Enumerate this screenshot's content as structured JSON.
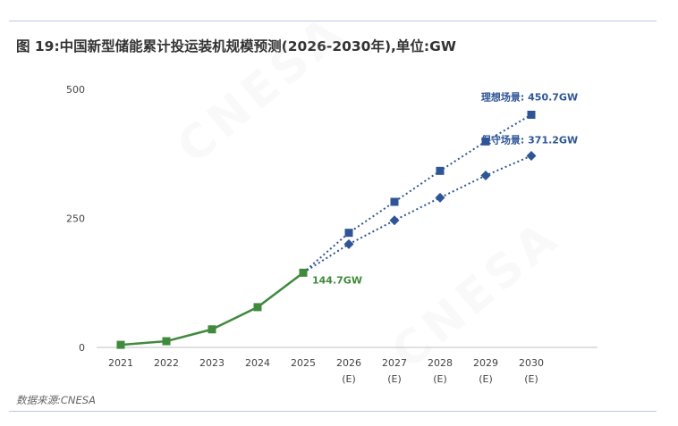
{
  "figure": {
    "title": "图 19:中国新型储能累计投运装机规模预测(2026-2030年),单位:GW",
    "source": "数据来源:CNESA",
    "watermark": "CNESA"
  },
  "colors": {
    "actual": "#3f8a3c",
    "forecast": "#2f5597",
    "rule": "#b9c8e6",
    "axis": "#bfbfbf"
  },
  "chart_data": {
    "type": "line",
    "title": "图 19:中国新型储能累计投运装机规模预测(2026-2030年),单位:GW",
    "xlabel": "",
    "ylabel": "",
    "ylim": [
      0,
      500
    ],
    "yticks": [
      "0",
      "250",
      "500"
    ],
    "categories": [
      "2021",
      "2022",
      "2023",
      "2024",
      "2025",
      "2026",
      "2027",
      "2028",
      "2029",
      "2030"
    ],
    "category_sublabels": [
      "",
      "",
      "",
      "",
      "",
      "(E)",
      "(E)",
      "(E)",
      "(E)",
      "(E)"
    ],
    "grid": false,
    "series": [
      {
        "name": "",
        "style": "solid",
        "marker": "square",
        "color": "#3f8a3c",
        "x": [
          "2021",
          "2022",
          "2023",
          "2024",
          "2025"
        ],
        "values": [
          5,
          12,
          35,
          78,
          144.7
        ]
      },
      {
        "name": "理想场景",
        "style": "dotted",
        "marker": "square",
        "color": "#2f5597",
        "x": [
          "2025",
          "2026",
          "2027",
          "2028",
          "2029",
          "2030"
        ],
        "values": [
          144.7,
          222,
          282,
          342,
          399,
          450.7
        ]
      },
      {
        "name": "保守场景",
        "style": "dotted",
        "marker": "diamond",
        "color": "#2f5597",
        "x": [
          "2025",
          "2026",
          "2027",
          "2028",
          "2029",
          "2030"
        ],
        "values": [
          144.7,
          200,
          246,
          290,
          333,
          371.2
        ]
      }
    ],
    "annotations": [
      {
        "text": "144.7GW",
        "series": 0,
        "x": "2025",
        "color": "#3f8a3c"
      },
      {
        "text": "理想场景: 450.7GW",
        "series": 1,
        "x": "2030",
        "color": "#2f5597"
      },
      {
        "text": "保守场景: 371.2GW",
        "series": 2,
        "x": "2030",
        "color": "#2f5597"
      }
    ]
  }
}
